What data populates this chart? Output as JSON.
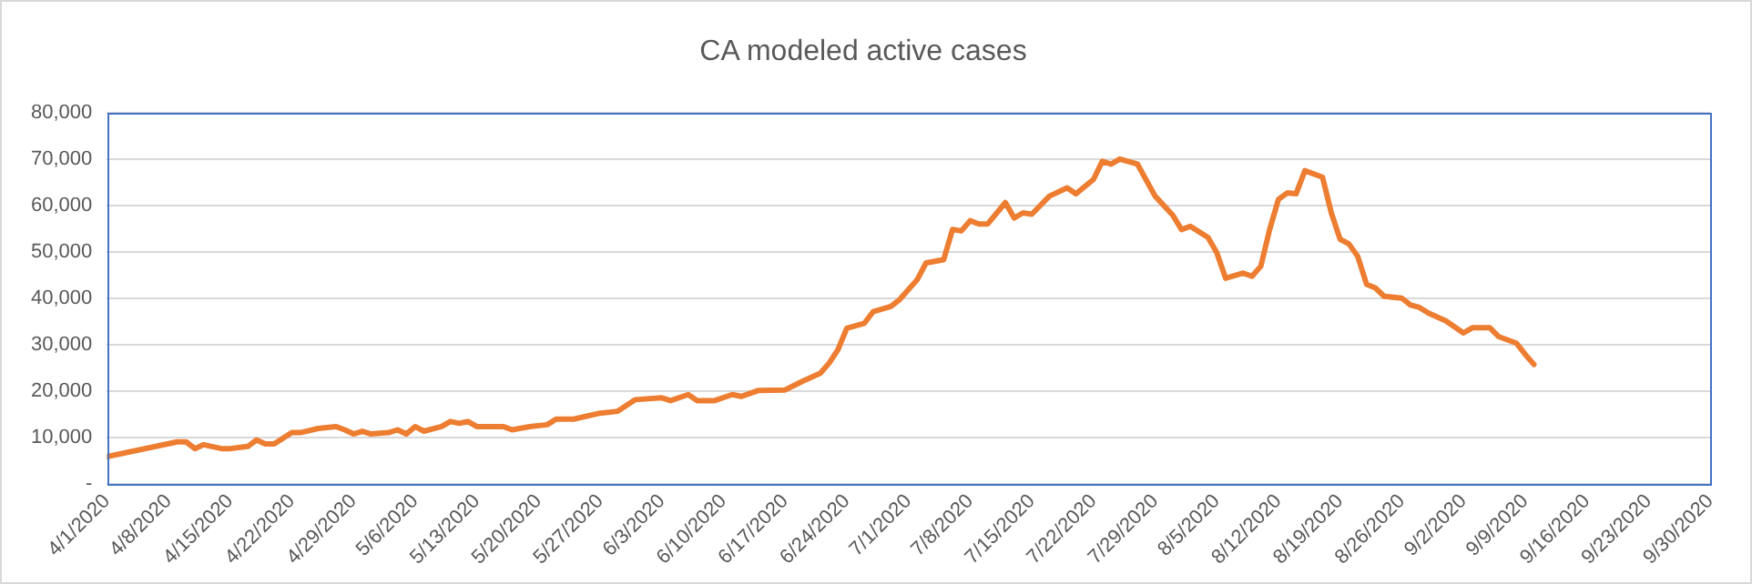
{
  "chart_data": {
    "type": "line",
    "title": "CA modeled active cases",
    "x": [
      "2020-04-01",
      "2020-04-09",
      "2020-04-10",
      "2020-04-11",
      "2020-04-12",
      "2020-04-14",
      "2020-04-15",
      "2020-04-17",
      "2020-04-18",
      "2020-04-19",
      "2020-04-20",
      "2020-04-22",
      "2020-04-23",
      "2020-04-25",
      "2020-04-27",
      "2020-04-28",
      "2020-04-29",
      "2020-04-30",
      "2020-05-01",
      "2020-05-03",
      "2020-05-04",
      "2020-05-05",
      "2020-05-06",
      "2020-05-07",
      "2020-05-09",
      "2020-05-10",
      "2020-05-11",
      "2020-05-12",
      "2020-05-13",
      "2020-05-16",
      "2020-05-17",
      "2020-05-19",
      "2020-05-21",
      "2020-05-22",
      "2020-05-24",
      "2020-05-27",
      "2020-05-29",
      "2020-05-31",
      "2020-06-03",
      "2020-06-04",
      "2020-06-06",
      "2020-06-07",
      "2020-06-09",
      "2020-06-11",
      "2020-06-12",
      "2020-06-14",
      "2020-06-17",
      "2020-06-19",
      "2020-06-21",
      "2020-06-22",
      "2020-06-23",
      "2020-06-24",
      "2020-06-26",
      "2020-06-27",
      "2020-06-29",
      "2020-06-30",
      "2020-07-02",
      "2020-07-03",
      "2020-07-05",
      "2020-07-06",
      "2020-07-07",
      "2020-07-08",
      "2020-07-09",
      "2020-07-10",
      "2020-07-12",
      "2020-07-13",
      "2020-07-14",
      "2020-07-15",
      "2020-07-17",
      "2020-07-19",
      "2020-07-20",
      "2020-07-22",
      "2020-07-23",
      "2020-07-24",
      "2020-07-25",
      "2020-07-27",
      "2020-07-29",
      "2020-07-31",
      "2020-08-01",
      "2020-08-02",
      "2020-08-04",
      "2020-08-05",
      "2020-08-06",
      "2020-08-08",
      "2020-08-09",
      "2020-08-10",
      "2020-08-11",
      "2020-08-12",
      "2020-08-13",
      "2020-08-14",
      "2020-08-15",
      "2020-08-17",
      "2020-08-18",
      "2020-08-19",
      "2020-08-20",
      "2020-08-21",
      "2020-08-22",
      "2020-08-23",
      "2020-08-24",
      "2020-08-26",
      "2020-08-27",
      "2020-08-28",
      "2020-08-29",
      "2020-08-31",
      "2020-09-02",
      "2020-09-03",
      "2020-09-05",
      "2020-09-06",
      "2020-09-08",
      "2020-09-09",
      "2020-09-10"
    ],
    "series": [
      {
        "color": "#ed7d31",
        "values": [
          5900,
          9100,
          9100,
          7650,
          8500,
          7650,
          7650,
          8100,
          9500,
          8650,
          8650,
          11100,
          11100,
          12000,
          12400,
          11700,
          10800,
          11400,
          10800,
          11100,
          11700,
          10800,
          12400,
          11400,
          12400,
          13500,
          13100,
          13500,
          12400,
          12400,
          11700,
          12400,
          12800,
          14000,
          14000,
          15300,
          15700,
          18200,
          18600,
          18000,
          19300,
          18000,
          18000,
          19300,
          18900,
          20200,
          20300,
          22200,
          23900,
          26100,
          29000,
          33600,
          34700,
          37200,
          38300,
          39800,
          44100,
          47700,
          48400,
          54900,
          54600,
          56800,
          56100,
          56100,
          60700,
          57400,
          58500,
          58200,
          62100,
          63900,
          62600,
          65700,
          69600,
          69000,
          70100,
          69000,
          62100,
          58000,
          54900,
          55600,
          53200,
          49900,
          44400,
          45500,
          44800,
          47000,
          54900,
          61400,
          62800,
          62600,
          67600,
          66200,
          58500,
          52800,
          51800,
          49100,
          43100,
          42300,
          40500,
          40100,
          38600,
          38100,
          36900,
          35200,
          32600,
          33700,
          33700,
          31800,
          30400,
          28000,
          25800
        ]
      }
    ],
    "xlim": [
      "2020-04-01",
      "2020-09-30"
    ],
    "xticks": [
      {
        "value": "2020-04-01",
        "label": "4/1/2020"
      },
      {
        "value": "2020-04-08",
        "label": "4/8/2020"
      },
      {
        "value": "2020-04-15",
        "label": "4/15/2020"
      },
      {
        "value": "2020-04-22",
        "label": "4/22/2020"
      },
      {
        "value": "2020-04-29",
        "label": "4/29/2020"
      },
      {
        "value": "2020-05-06",
        "label": "5/6/2020"
      },
      {
        "value": "2020-05-13",
        "label": "5/13/2020"
      },
      {
        "value": "2020-05-20",
        "label": "5/20/2020"
      },
      {
        "value": "2020-05-27",
        "label": "5/27/2020"
      },
      {
        "value": "2020-06-03",
        "label": "6/3/2020"
      },
      {
        "value": "2020-06-10",
        "label": "6/10/2020"
      },
      {
        "value": "2020-06-17",
        "label": "6/17/2020"
      },
      {
        "value": "2020-06-24",
        "label": "6/24/2020"
      },
      {
        "value": "2020-07-01",
        "label": "7/1/2020"
      },
      {
        "value": "2020-07-08",
        "label": "7/8/2020"
      },
      {
        "value": "2020-07-15",
        "label": "7/15/2020"
      },
      {
        "value": "2020-07-22",
        "label": "7/22/2020"
      },
      {
        "value": "2020-07-29",
        "label": "7/29/2020"
      },
      {
        "value": "2020-08-05",
        "label": "8/5/2020"
      },
      {
        "value": "2020-08-12",
        "label": "8/12/2020"
      },
      {
        "value": "2020-08-19",
        "label": "8/19/2020"
      },
      {
        "value": "2020-08-26",
        "label": "8/26/2020"
      },
      {
        "value": "2020-09-02",
        "label": "9/2/2020"
      },
      {
        "value": "2020-09-09",
        "label": "9/9/2020"
      },
      {
        "value": "2020-09-16",
        "label": "9/16/2020"
      },
      {
        "value": "2020-09-23",
        "label": "9/23/2020"
      },
      {
        "value": "2020-09-30",
        "label": "9/30/2020"
      }
    ],
    "ylim": [
      0,
      80000
    ],
    "yticks": [
      {
        "value": 0,
        "label": "-"
      },
      {
        "value": 10000,
        "label": "10,000"
      },
      {
        "value": 20000,
        "label": "20,000"
      },
      {
        "value": 30000,
        "label": "30,000"
      },
      {
        "value": 40000,
        "label": "40,000"
      },
      {
        "value": 50000,
        "label": "50,000"
      },
      {
        "value": 60000,
        "label": "60,000"
      },
      {
        "value": 70000,
        "label": "70,000"
      },
      {
        "value": 80000,
        "label": "80,000"
      }
    ],
    "grid": "y",
    "legend": false,
    "marker": "none",
    "line_style": "solid"
  }
}
